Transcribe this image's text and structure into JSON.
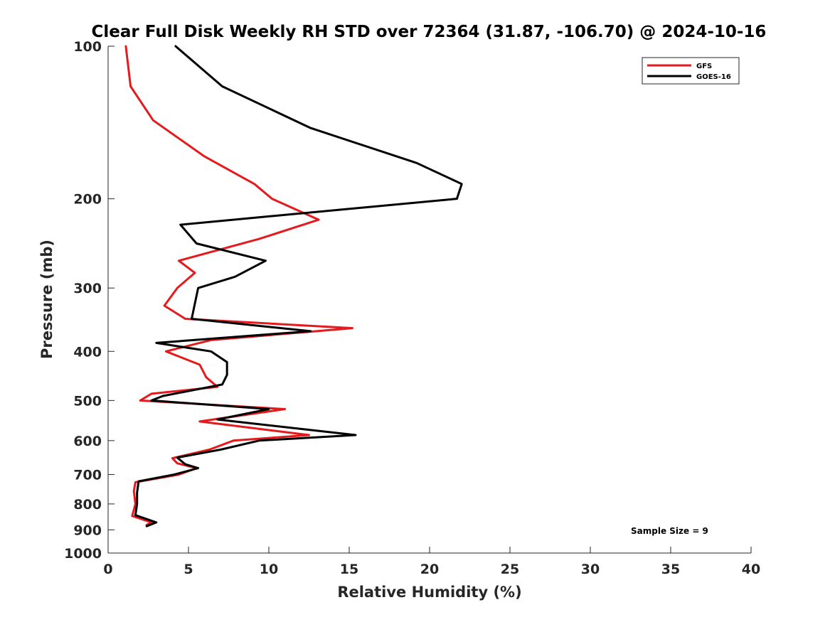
{
  "chart_data": {
    "type": "line",
    "title": "Clear Full Disk Weekly RH STD over 72364 (31.87, -106.70) @ 2024-10-16",
    "xlabel": "Relative Humidity (%)",
    "ylabel": "Pressure (mb)",
    "xlim": [
      0,
      40
    ],
    "ylim": [
      100,
      1000
    ],
    "y_scale": "log",
    "y_reversed": true,
    "grid": false,
    "legend_position": "top-right",
    "x_ticks": [
      0,
      5,
      10,
      15,
      20,
      25,
      30,
      35,
      40
    ],
    "x_tick_labels": [
      "0",
      "5",
      "10",
      "15",
      "20",
      "25",
      "30",
      "35",
      "40"
    ],
    "y_ticks": [
      100,
      200,
      300,
      400,
      500,
      600,
      700,
      800,
      900,
      1000
    ],
    "y_tick_labels": [
      "100",
      "200",
      "300",
      "400",
      "500",
      "600",
      "700",
      "800",
      "900",
      "1000"
    ],
    "series": [
      {
        "name": "GFS",
        "color": "#e41a1c",
        "points": [
          [
            1.1,
            100
          ],
          [
            1.4,
            120
          ],
          [
            2.8,
            140
          ],
          [
            6.0,
            165
          ],
          [
            9.1,
            187
          ],
          [
            10.2,
            200
          ],
          [
            13.1,
            220
          ],
          [
            9.4,
            240
          ],
          [
            4.4,
            265
          ],
          [
            5.4,
            280
          ],
          [
            4.3,
            300
          ],
          [
            3.5,
            325
          ],
          [
            4.8,
            345
          ],
          [
            15.2,
            360
          ],
          [
            6.4,
            380
          ],
          [
            3.6,
            400
          ],
          [
            5.7,
            425
          ],
          [
            6.1,
            450
          ],
          [
            6.8,
            470
          ],
          [
            2.7,
            485
          ],
          [
            2.0,
            500
          ],
          [
            11.0,
            520
          ],
          [
            5.7,
            550
          ],
          [
            12.5,
            585
          ],
          [
            7.8,
            600
          ],
          [
            6.3,
            625
          ],
          [
            4.0,
            650
          ],
          [
            4.3,
            665
          ],
          [
            5.5,
            680
          ],
          [
            4.4,
            700
          ],
          [
            1.7,
            725
          ],
          [
            1.6,
            755
          ],
          [
            1.7,
            800
          ],
          [
            1.5,
            845
          ],
          [
            2.7,
            870
          ],
          [
            2.4,
            880
          ]
        ]
      },
      {
        "name": "GOES-16",
        "color": "#000000",
        "points": [
          [
            4.2,
            100
          ],
          [
            7.1,
            120
          ],
          [
            12.6,
            145
          ],
          [
            19.2,
            170
          ],
          [
            22.0,
            187
          ],
          [
            21.7,
            200
          ],
          [
            4.5,
            225
          ],
          [
            5.5,
            245
          ],
          [
            9.8,
            265
          ],
          [
            7.9,
            285
          ],
          [
            5.6,
            300
          ],
          [
            5.2,
            345
          ],
          [
            12.6,
            365
          ],
          [
            3.0,
            385
          ],
          [
            6.4,
            400
          ],
          [
            7.4,
            420
          ],
          [
            7.4,
            445
          ],
          [
            7.1,
            465
          ],
          [
            3.4,
            490
          ],
          [
            2.7,
            500
          ],
          [
            10.0,
            520
          ],
          [
            6.8,
            545
          ],
          [
            15.4,
            585
          ],
          [
            9.4,
            600
          ],
          [
            7.0,
            625
          ],
          [
            4.3,
            648
          ],
          [
            4.8,
            668
          ],
          [
            5.6,
            680
          ],
          [
            4.1,
            700
          ],
          [
            1.9,
            722
          ],
          [
            1.8,
            760
          ],
          [
            1.8,
            800
          ],
          [
            1.7,
            842
          ],
          [
            3.0,
            870
          ],
          [
            2.4,
            885
          ]
        ]
      }
    ],
    "annotations": [
      "Sample Size = 9"
    ]
  }
}
